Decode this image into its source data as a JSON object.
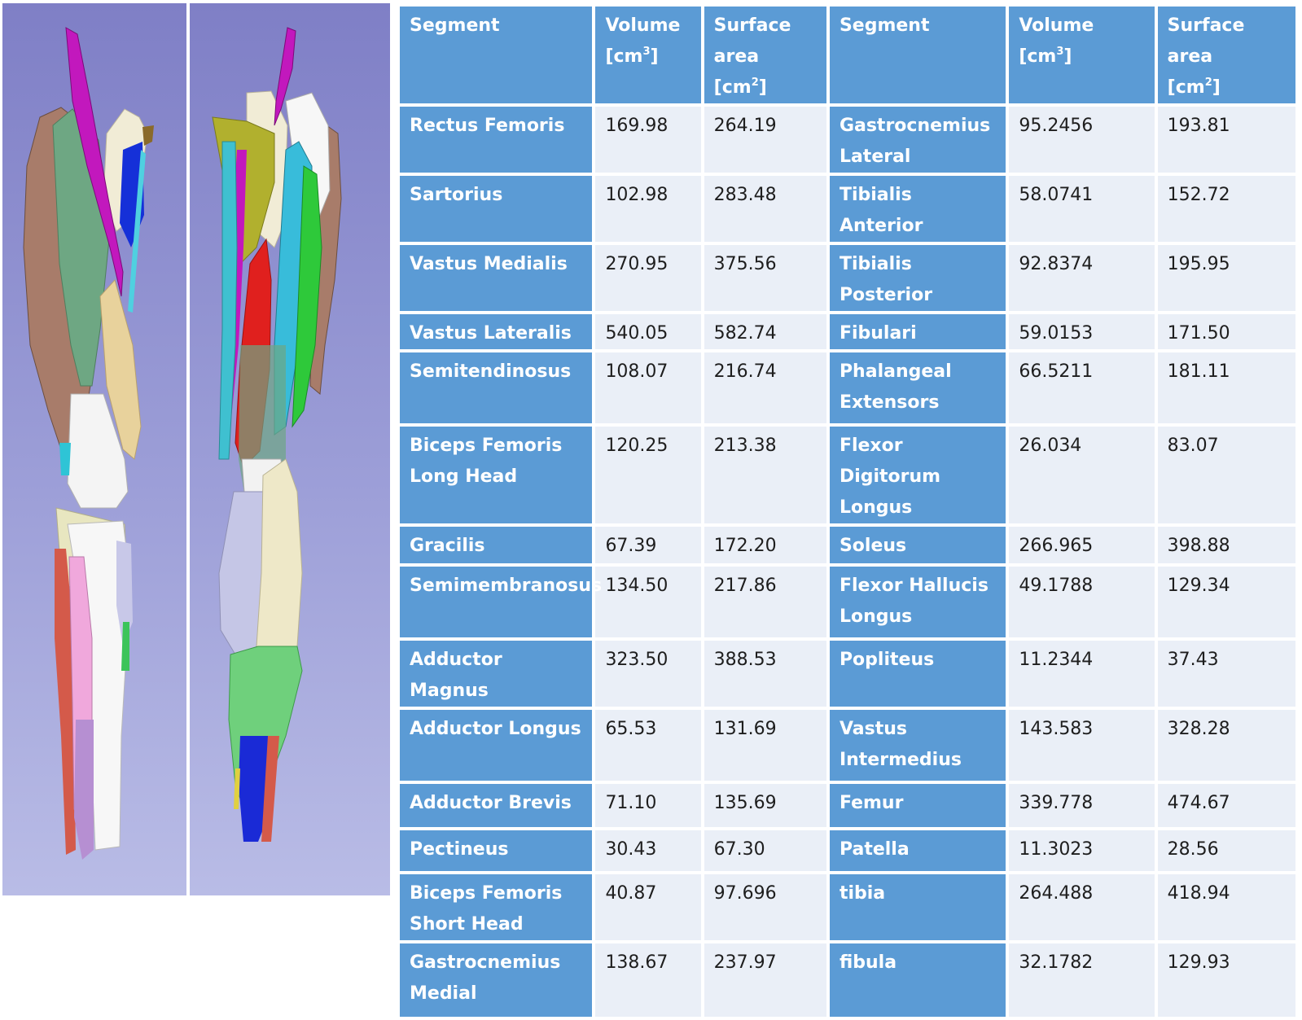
{
  "table": {
    "headers": [
      {
        "main": "Segment",
        "unit_open": "",
        "sup": "",
        "unit_close": ""
      },
      {
        "main": "Volume",
        "unit_open": "[cm",
        "sup": "3",
        "unit_close": "]"
      },
      {
        "main": "Surface",
        "unit_open": "area [cm",
        "sup": "2",
        "unit_close": "]"
      },
      {
        "main": "Segment",
        "unit_open": "",
        "sup": "",
        "unit_close": ""
      },
      {
        "main": "Volume",
        "unit_open": "[cm",
        "sup": "3",
        "unit_close": "]"
      },
      {
        "main": "Surface area",
        "unit_open": "[cm",
        "sup": "2",
        "unit_close": "]"
      }
    ],
    "rows": [
      [
        "Rectus Femoris",
        "169.98",
        "264.19",
        "Gastrocnemius Lateral",
        "95.2456",
        "193.81"
      ],
      [
        "Sartorius",
        "102.98",
        "283.48",
        "Tibialis Anterior",
        "58.0741",
        "152.72"
      ],
      [
        "Vastus Medialis",
        "270.95",
        "375.56",
        "Tibialis Posterior",
        "92.8374",
        "195.95"
      ],
      [
        "Vastus Lateralis",
        "540.05",
        "582.74",
        "Fibulari",
        "59.0153",
        "171.50"
      ],
      [
        "Semitendinosus",
        "108.07",
        "216.74",
        "Phalangeal Extensors",
        "66.5211",
        "181.11"
      ],
      [
        "Biceps Femoris Long Head",
        "120.25",
        "213.38",
        "Flexor Digitorum Longus",
        "26.034",
        "83.07"
      ],
      [
        "Gracilis",
        "67.39",
        "172.20",
        "Soleus",
        "266.965",
        "398.88"
      ],
      [
        "Semimembranosus",
        "134.50",
        "217.86",
        "Flexor Hallucis Longus",
        "49.1788",
        "129.34"
      ],
      [
        "Adductor Magnus",
        "323.50",
        "388.53",
        "Popliteus",
        "11.2344",
        "37.43"
      ],
      [
        "Adductor Longus",
        "65.53",
        "131.69",
        "Vastus Intermedius",
        "143.583",
        "328.28"
      ],
      [
        "Adductor Brevis",
        "71.10",
        "135.69",
        "Femur",
        "339.778",
        "474.67"
      ],
      [
        "Pectineus",
        "30.43",
        "67.30",
        "Patella",
        "11.3023",
        "28.56"
      ],
      [
        "Biceps Femoris Short Head",
        "40.87",
        "97.696",
        "tibia",
        "264.488",
        "418.94"
      ],
      [
        "Gastrocnemius Medial",
        "138.67",
        "237.97",
        "fibula",
        "32.1782",
        "129.93"
      ]
    ]
  },
  "colors": {
    "header_bg": "#5b9bd5",
    "header_text": "#ffffff",
    "cell_bg": "#eaeff7",
    "cell_text": "#1e1e1e",
    "viewport_bg_top": "#7f7fc6",
    "viewport_bg_bottom": "#b9bce6"
  }
}
